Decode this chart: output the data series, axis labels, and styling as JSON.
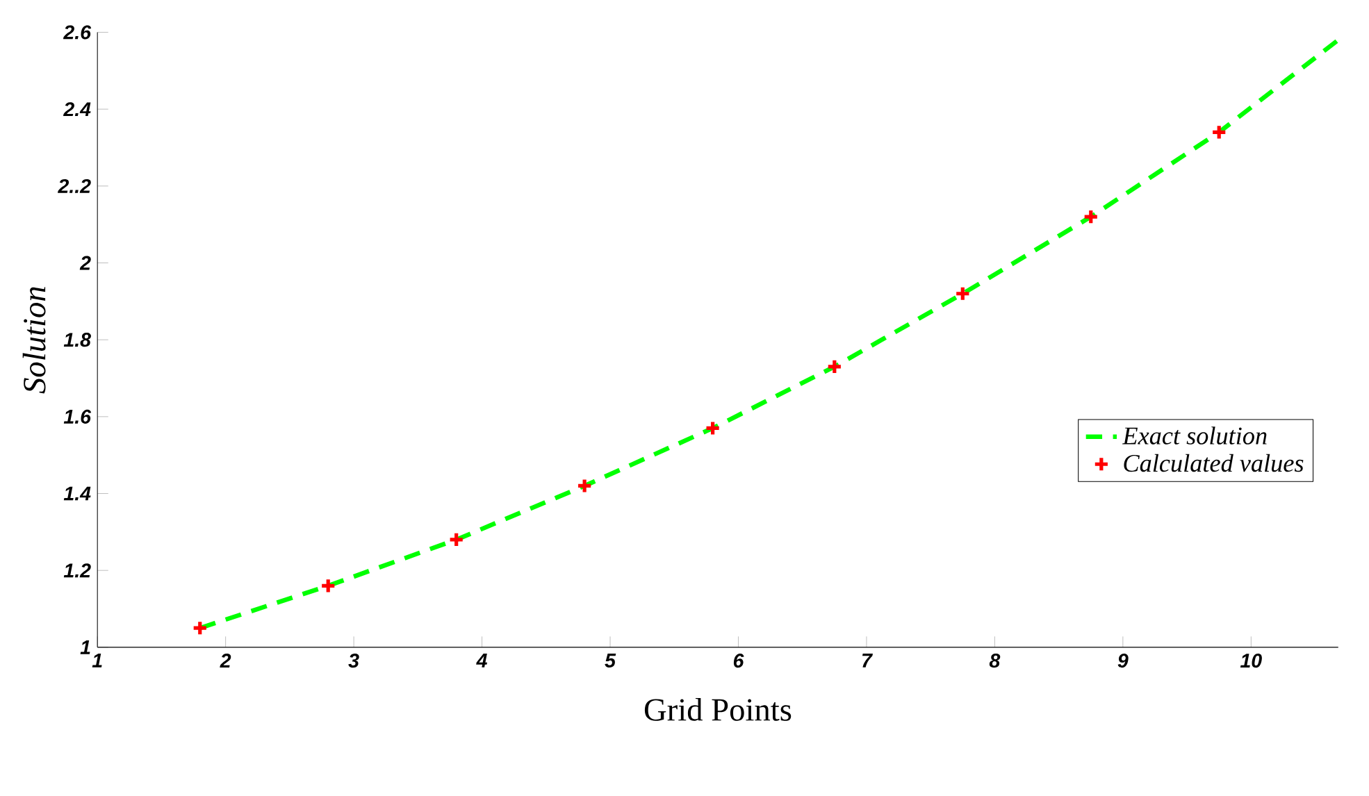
{
  "chart_data": {
    "type": "line",
    "xlabel": "Grid Points",
    "ylabel": "Solution",
    "xlim": [
      1,
      10.68
    ],
    "xticks": [
      1,
      2,
      3,
      4,
      5,
      6,
      7,
      8,
      9,
      10
    ],
    "ylim": [
      1,
      2.6
    ],
    "yticks": [
      1,
      1.2,
      1.4,
      1.6,
      1.8,
      2,
      {
        "value": 2.2,
        "label": "2..2"
      },
      2.4,
      2.6
    ],
    "legend": "right",
    "grid": false,
    "series": [
      {
        "name": "Exact solution",
        "line_style": "dashed",
        "marker": "none",
        "color": "#00ff00",
        "x": [
          1.8,
          2.8,
          3.8,
          4.8,
          5.8,
          6.75,
          7.75,
          8.75,
          9.75,
          10.68
        ],
        "values": [
          1.05,
          1.16,
          1.28,
          1.42,
          1.57,
          1.73,
          1.92,
          2.12,
          2.34,
          2.58
        ]
      },
      {
        "name": "Calculated values",
        "type": "scatter",
        "marker": "cross",
        "color": "#ff0000",
        "x": [
          1.8,
          2.8,
          3.8,
          4.8,
          5.8,
          6.75,
          7.75,
          8.75,
          9.75
        ],
        "values": [
          1.05,
          1.16,
          1.28,
          1.42,
          1.57,
          1.73,
          1.92,
          2.12,
          2.34
        ]
      }
    ]
  }
}
